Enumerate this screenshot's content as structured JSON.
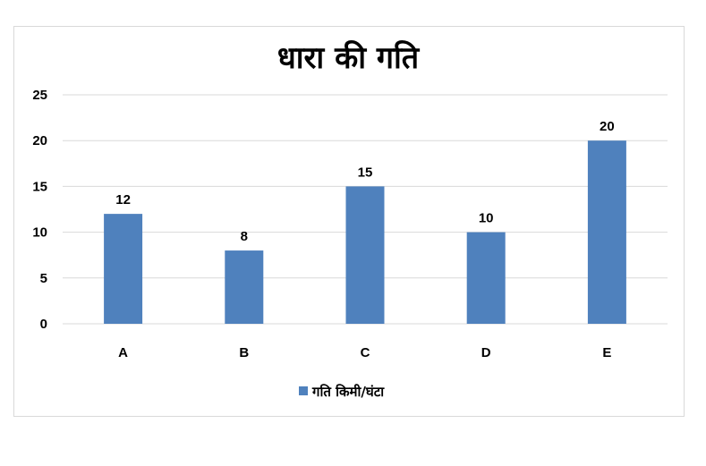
{
  "chart_data": {
    "type": "bar",
    "title": "धारा की गति",
    "categories": [
      "A",
      "B",
      "C",
      "D",
      "E"
    ],
    "series": [
      {
        "name": "गति किमी/घंटा",
        "values": [
          12,
          8,
          15,
          10,
          20
        ],
        "color": "#4f81bd"
      }
    ],
    "ylim": [
      0,
      25
    ],
    "yticks": [
      0,
      5,
      10,
      15,
      20,
      25
    ],
    "grid": true,
    "gridColor": "#d9d9d9",
    "data_labels": true,
    "legend_position": "bottom"
  }
}
